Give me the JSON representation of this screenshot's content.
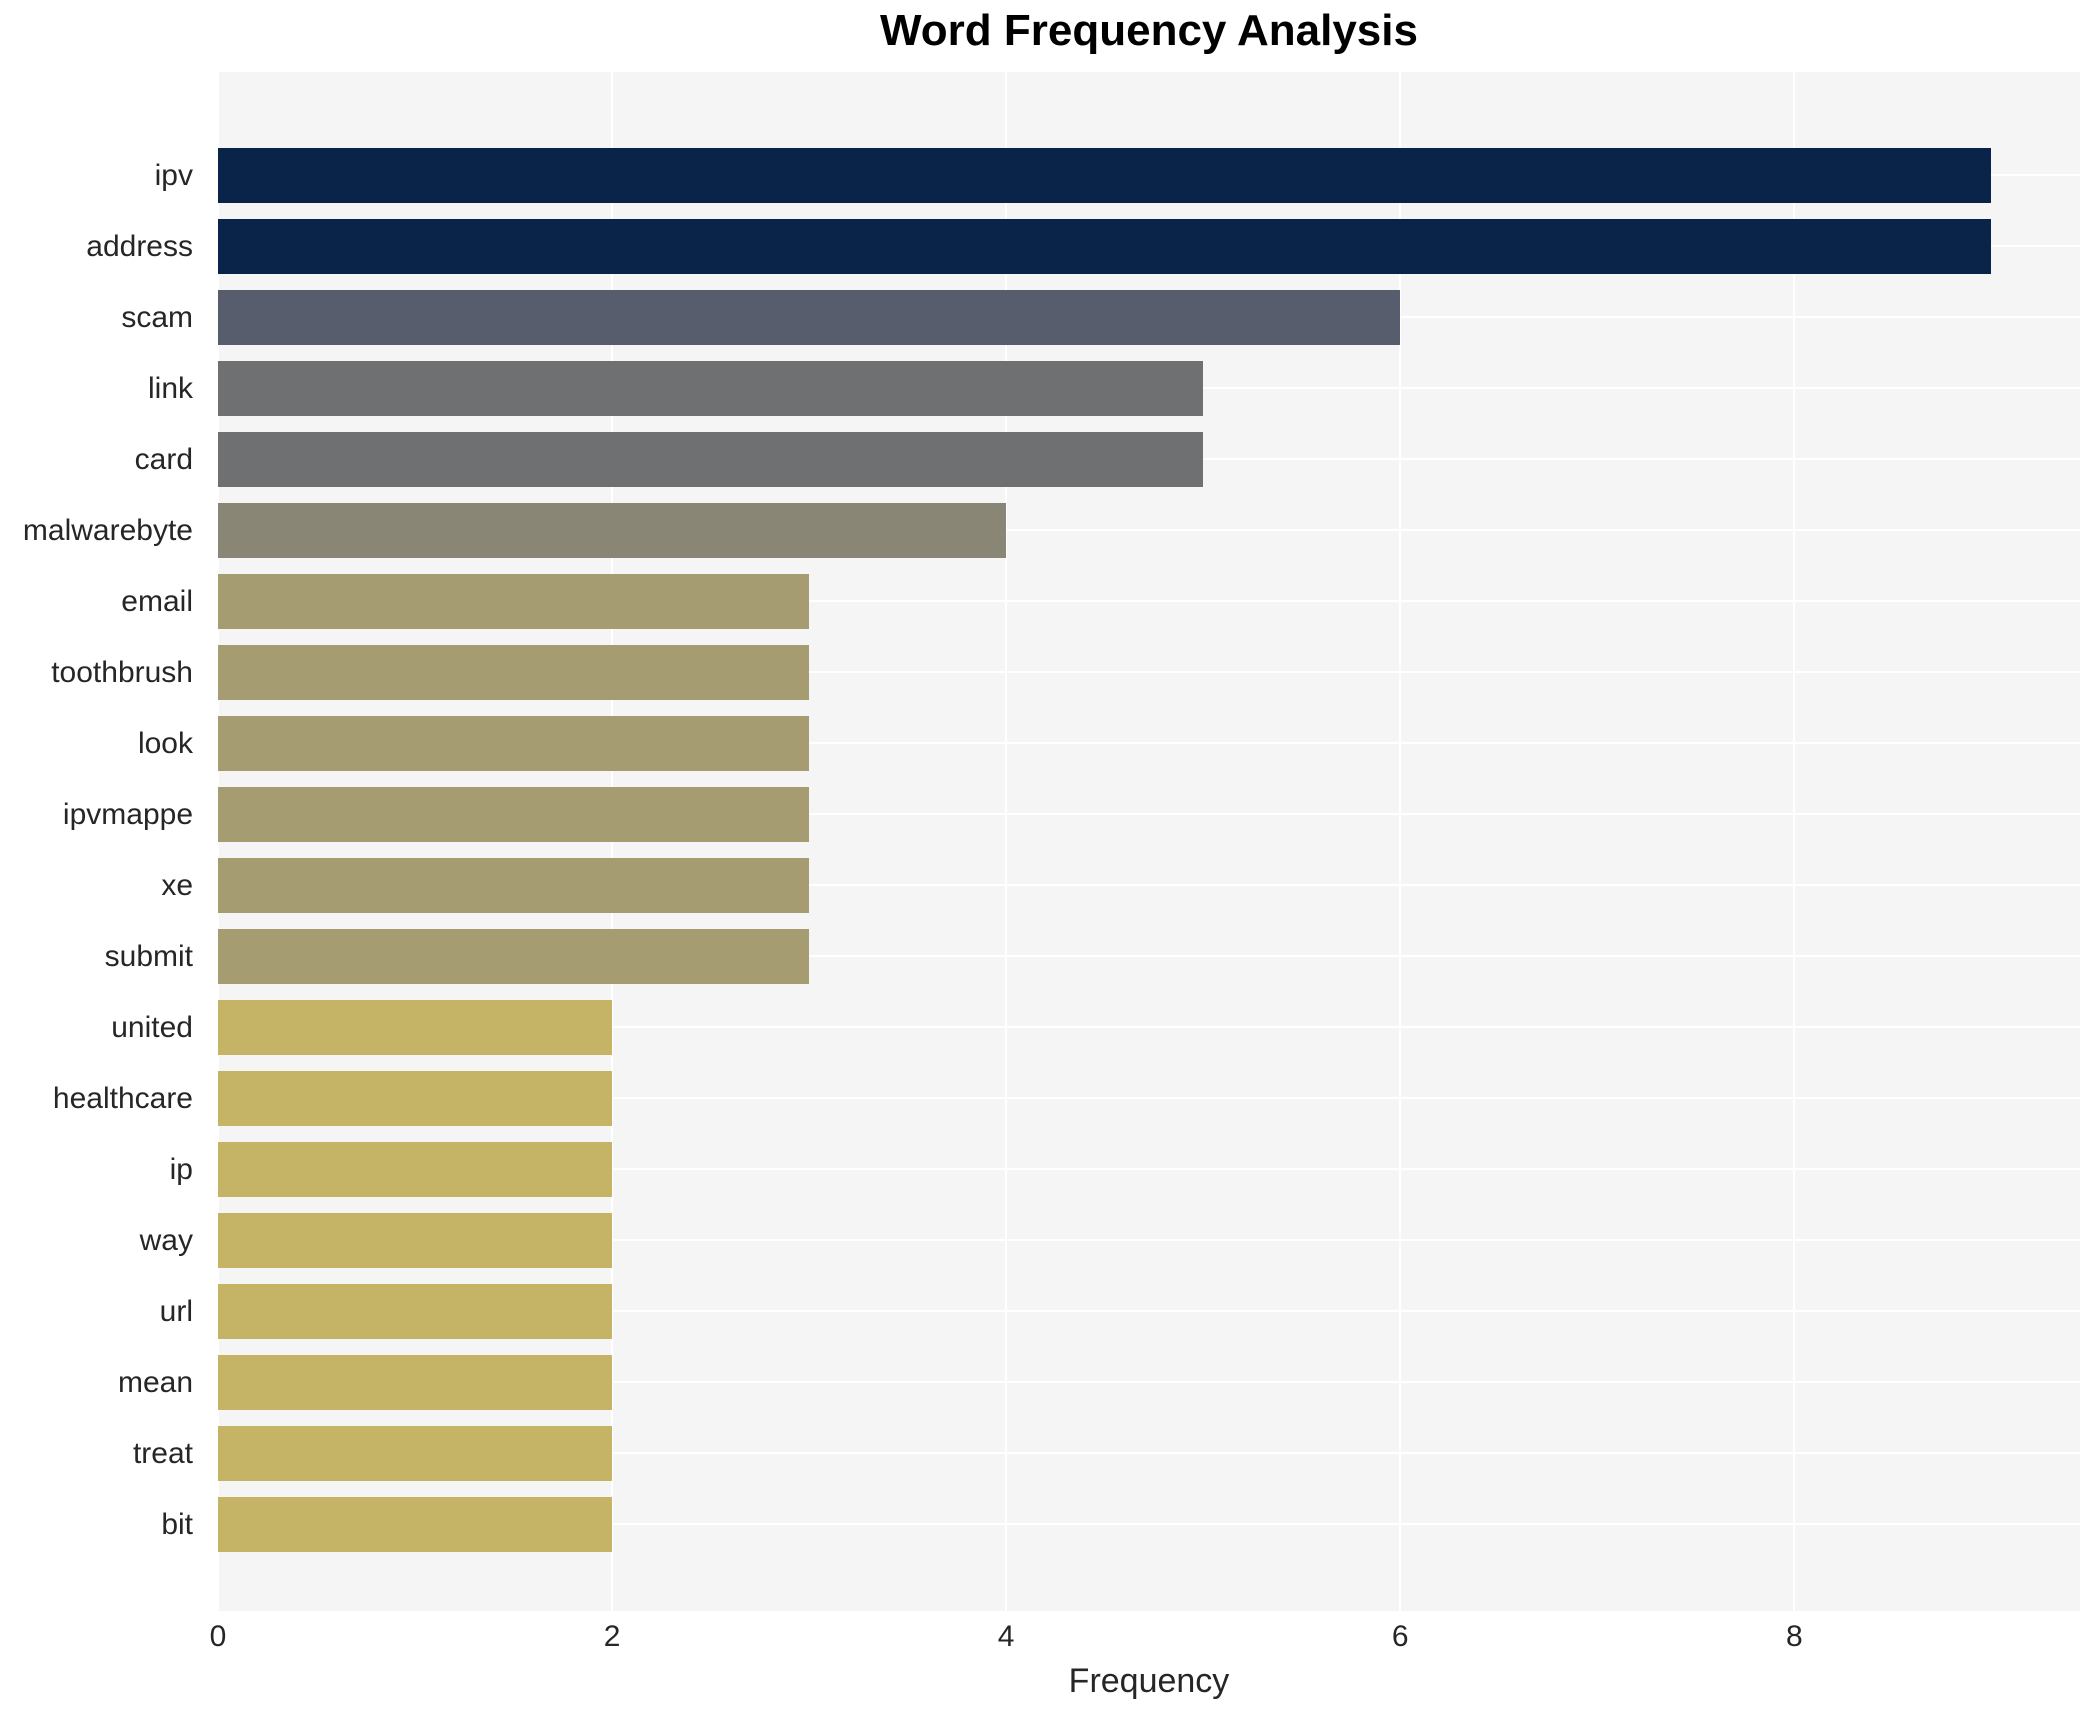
{
  "title": "Word Frequency Analysis",
  "chart_data": {
    "type": "bar",
    "orientation": "horizontal",
    "title": "Word Frequency Analysis",
    "xlabel": "Frequency",
    "ylabel": "",
    "categories": [
      "ipv",
      "address",
      "scam",
      "link",
      "card",
      "malwarebyte",
      "email",
      "toothbrush",
      "look",
      "ipvmappe",
      "xe",
      "submit",
      "united",
      "healthcare",
      "ip",
      "way",
      "url",
      "mean",
      "treat",
      "bit"
    ],
    "values": [
      9,
      9,
      6,
      5,
      5,
      4,
      3,
      3,
      3,
      3,
      3,
      3,
      2,
      2,
      2,
      2,
      2,
      2,
      2,
      2
    ],
    "bar_colors": [
      "#0a2348",
      "#0a2348",
      "#575d6d",
      "#6f7072",
      "#6f7072",
      "#898675",
      "#a59c72",
      "#a59c72",
      "#a59c72",
      "#a59c72",
      "#a59c72",
      "#a59c72",
      "#c5b366",
      "#c5b366",
      "#c5b366",
      "#c5b366",
      "#c5b366",
      "#c5b366",
      "#c5b366",
      "#c5b366"
    ],
    "xlim": [
      0,
      9.45
    ],
    "xticks": [
      "0",
      "2",
      "4",
      "6",
      "8"
    ],
    "grid": true,
    "legend": false,
    "colors": {
      "plot_background": "#f5f5f6",
      "grid_line": "#ffffff",
      "tick_text": "#262626",
      "title_text": "#000000"
    }
  }
}
